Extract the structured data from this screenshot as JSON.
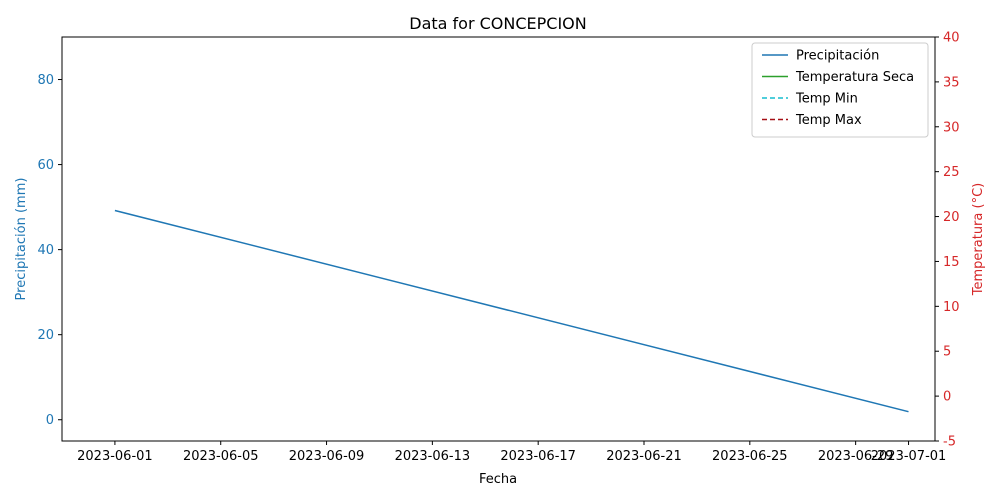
{
  "chart_data": {
    "type": "line",
    "title": "Data for CONCEPCION",
    "xlabel": "Fecha",
    "ylabel_left": "Precipitación (mm)",
    "ylabel_right": "Temperatura (°C)",
    "x_ticks": [
      "2023-06-01",
      "2023-06-05",
      "2023-06-09",
      "2023-06-13",
      "2023-06-17",
      "2023-06-21",
      "2023-06-25",
      "2023-06-29",
      "2023-07-01"
    ],
    "xlim": [
      "2023-05-30",
      "2023-07-02"
    ],
    "ylim_left": [
      -5,
      90
    ],
    "yticks_left": [
      0,
      20,
      40,
      60,
      80
    ],
    "ylim_right": [
      -5,
      40
    ],
    "yticks_right": [
      -5,
      0,
      5,
      10,
      15,
      20,
      25,
      30,
      35,
      40
    ],
    "legend_position": "top-right",
    "grid": false,
    "series": [
      {
        "name": "Precipitación",
        "axis": "left",
        "color": "#1f77b4",
        "style": "solid",
        "x": [
          "2023-06-01",
          "2023-07-01"
        ],
        "values": [
          49.2,
          1.9
        ]
      },
      {
        "name": "Temperatura Seca",
        "axis": "right",
        "color": "#2ca02c",
        "style": "solid",
        "x": [],
        "values": []
      },
      {
        "name": "Temp Min",
        "axis": "right",
        "color": "#17becf",
        "style": "dashed",
        "x": [],
        "values": []
      },
      {
        "name": "Temp Max",
        "axis": "right",
        "color": "#a50f15",
        "style": "dashed",
        "x": [],
        "values": []
      }
    ],
    "colors": {
      "left_axis": "#1f77b4",
      "right_axis": "#d62728"
    }
  }
}
